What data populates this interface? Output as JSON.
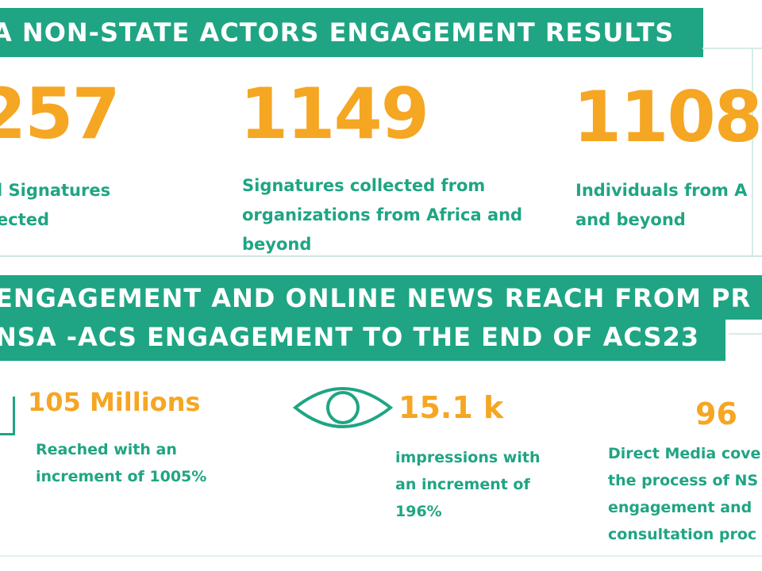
{
  "header": {
    "title": "A NON-STATE ACTORS ENGAGEMENT RESULTS"
  },
  "signatures": [
    {
      "number": "257",
      "lines": [
        "l  Signatures",
        "ected"
      ]
    },
    {
      "number": "1149",
      "lines": [
        "Signatures  collected from",
        "organizations from Africa and",
        "beyond"
      ]
    },
    {
      "number": "1108",
      "lines": [
        "Individuals  from A",
        "and beyond"
      ]
    }
  ],
  "media_banner": {
    "line1": "ENGAGEMENT  AND ONLINE NEWS REACH FROM PR",
    "line2": "NSA -ACS ENGAGEMENT TO THE END OF ACS23"
  },
  "media_stats": [
    {
      "value": "105 Millions",
      "lines": [
        "Reached with an",
        "increment of 1005%"
      ]
    },
    {
      "value": "15.1 k",
      "icon": "eye-icon",
      "lines": [
        "impressions with",
        "an increment of",
        "196%"
      ]
    },
    {
      "value": "96",
      "lines": [
        "Direct Media cove",
        "the process of NS",
        "engagement and",
        "consultation proc"
      ]
    }
  ],
  "colors": {
    "accent": "#1fa583",
    "highlight": "#f5a623",
    "background": "#ffffff"
  }
}
